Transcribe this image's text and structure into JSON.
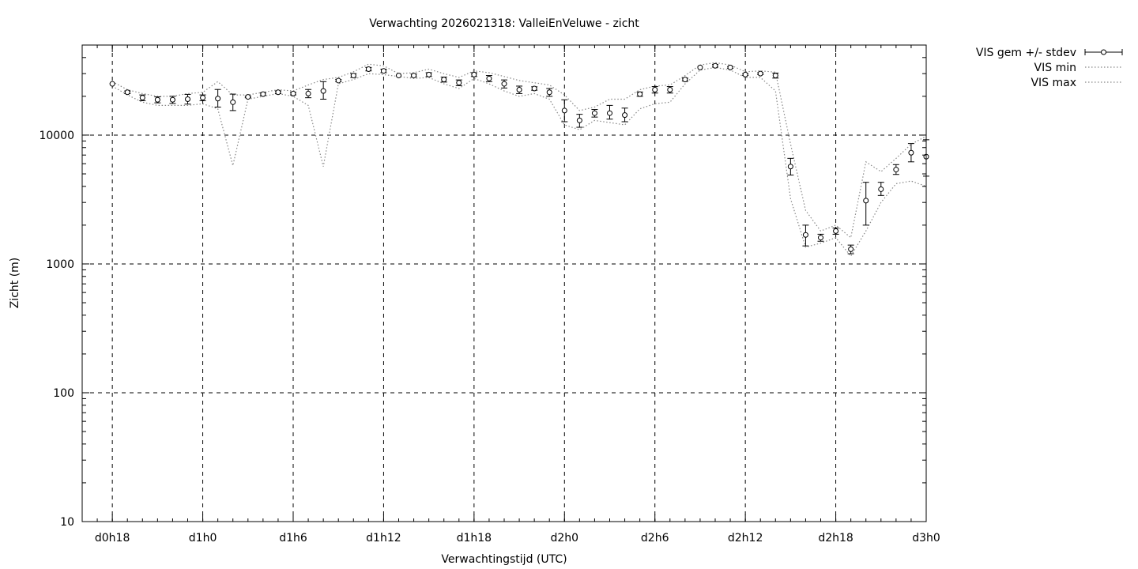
{
  "chart_data": {
    "type": "scatter",
    "title": "Verwachting 2026021318: ValleiEnVeluwe - zicht",
    "xlabel": "Verwachtingstijd (UTC)",
    "ylabel": "Zicht (m)",
    "yscale": "log",
    "ylim": [
      10,
      50000
    ],
    "y_ticks": [
      {
        "value": 10,
        "label": "10"
      },
      {
        "value": 100,
        "label": "100"
      },
      {
        "value": 1000,
        "label": "1000"
      },
      {
        "value": 10000,
        "label": "10000"
      }
    ],
    "x_hours_range": [
      -2,
      54
    ],
    "x_ticks": [
      {
        "hour": 0,
        "label": "d0h18"
      },
      {
        "hour": 6,
        "label": "d1h0"
      },
      {
        "hour": 12,
        "label": "d1h6"
      },
      {
        "hour": 18,
        "label": "d1h12"
      },
      {
        "hour": 24,
        "label": "d1h18"
      },
      {
        "hour": 30,
        "label": "d2h0"
      },
      {
        "hour": 36,
        "label": "d2h6"
      },
      {
        "hour": 42,
        "label": "d2h12"
      },
      {
        "hour": 48,
        "label": "d2h18"
      },
      {
        "hour": 54,
        "label": "d3h0"
      }
    ],
    "grid": true,
    "legend_position": "outside-top-right",
    "series": [
      {
        "name": "VIS gem +/- stdev",
        "style": "points-errorbars",
        "x_hours": [
          0,
          1,
          2,
          3,
          4,
          5,
          6,
          7,
          8,
          9,
          10,
          11,
          12,
          13,
          14,
          15,
          16,
          17,
          18,
          19,
          20,
          21,
          22,
          23,
          24,
          25,
          26,
          27,
          28,
          29,
          30,
          31,
          32,
          33,
          34,
          35,
          36,
          37,
          38,
          39,
          40,
          41,
          42,
          43,
          44,
          45,
          46,
          47,
          48,
          49,
          50,
          51,
          52,
          53,
          54
        ],
        "mean": [
          25000,
          21500,
          19500,
          18800,
          18800,
          19000,
          19500,
          19200,
          18000,
          19800,
          20800,
          21500,
          21000,
          21000,
          22000,
          26500,
          29000,
          32500,
          31500,
          29000,
          29000,
          29500,
          27000,
          25500,
          29500,
          27500,
          25000,
          22500,
          23000,
          21500,
          15500,
          13000,
          14800,
          14800,
          14300,
          20800,
          22500,
          22500,
          27000,
          33500,
          34500,
          33500,
          29500,
          30000,
          29000,
          5700,
          1680,
          1600,
          1800,
          1300,
          3100,
          3800,
          5400,
          7300,
          6800
        ],
        "low": [
          25000,
          21000,
          18500,
          17800,
          17600,
          17400,
          18500,
          16500,
          15500,
          19500,
          20300,
          21000,
          20500,
          19500,
          19000,
          26000,
          28000,
          31500,
          30500,
          28800,
          28200,
          28500,
          25800,
          24200,
          28500,
          26000,
          23200,
          21000,
          22300,
          20000,
          12700,
          11500,
          13800,
          13300,
          12700,
          20000,
          21200,
          21200,
          26300,
          33200,
          33700,
          33000,
          29000,
          29500,
          27700,
          4900,
          1380,
          1500,
          1700,
          1200,
          2000,
          3400,
          4950,
          6200,
          4800
        ],
        "high": [
          25000,
          22000,
          20500,
          19800,
          20000,
          20700,
          20500,
          22600,
          20800,
          20100,
          21300,
          22000,
          21500,
          22600,
          26000,
          27000,
          30000,
          33500,
          32500,
          29200,
          29800,
          30500,
          28200,
          26800,
          30500,
          29000,
          26800,
          24000,
          23700,
          23000,
          18800,
          14500,
          15800,
          17000,
          16200,
          21600,
          23800,
          23800,
          27700,
          33800,
          35300,
          34000,
          30000,
          30500,
          30300,
          6600,
          2000,
          1700,
          1900,
          1400,
          4300,
          4300,
          5900,
          8600,
          9200
        ]
      },
      {
        "name": "VIS min",
        "style": "dotted-line",
        "x_hours": [
          0,
          1,
          2,
          3,
          4,
          5,
          6,
          7,
          8,
          9,
          10,
          11,
          12,
          13,
          14,
          15,
          16,
          17,
          18,
          19,
          20,
          21,
          22,
          23,
          24,
          25,
          26,
          27,
          28,
          29,
          30,
          31,
          32,
          33,
          34,
          35,
          36,
          37,
          38,
          39,
          40,
          41,
          42,
          43,
          44,
          45,
          46,
          47,
          48,
          49,
          50,
          51,
          52,
          53,
          54
        ],
        "values": [
          24000,
          20500,
          18000,
          17000,
          17000,
          17000,
          17500,
          16000,
          5800,
          19000,
          20000,
          21000,
          20000,
          17000,
          5700,
          25000,
          27000,
          30000,
          29500,
          28500,
          27500,
          28000,
          25000,
          23000,
          27500,
          25000,
          22000,
          20000,
          21000,
          19000,
          12000,
          11000,
          13000,
          12500,
          12000,
          16000,
          17500,
          18000,
          25000,
          32000,
          33500,
          32000,
          28000,
          28000,
          22000,
          3200,
          1350,
          1450,
          1600,
          1150,
          1800,
          3000,
          4200,
          4400,
          4000
        ]
      },
      {
        "name": "VIS max",
        "style": "dotted-line",
        "x_hours": [
          0,
          1,
          2,
          3,
          4,
          5,
          6,
          7,
          8,
          9,
          10,
          11,
          12,
          13,
          14,
          15,
          16,
          17,
          18,
          19,
          20,
          21,
          22,
          23,
          24,
          25,
          26,
          27,
          28,
          29,
          30,
          31,
          32,
          33,
          34,
          35,
          36,
          37,
          38,
          39,
          40,
          41,
          42,
          43,
          44,
          45,
          46,
          47,
          48,
          49,
          50,
          51,
          52,
          53,
          54
        ],
        "values": [
          26000,
          22500,
          21000,
          20000,
          20000,
          21000,
          21500,
          26000,
          20500,
          20500,
          21500,
          22500,
          22000,
          24500,
          27000,
          28000,
          31000,
          35500,
          34500,
          30000,
          30500,
          32500,
          30000,
          28000,
          31500,
          30500,
          28500,
          26500,
          25500,
          24500,
          20500,
          15500,
          16500,
          19000,
          19000,
          22500,
          24000,
          24500,
          29000,
          35000,
          36500,
          35000,
          31000,
          31500,
          30800,
          8500,
          2600,
          1800,
          2000,
          1600,
          6200,
          5200,
          6600,
          8500,
          9800
        ]
      }
    ]
  }
}
